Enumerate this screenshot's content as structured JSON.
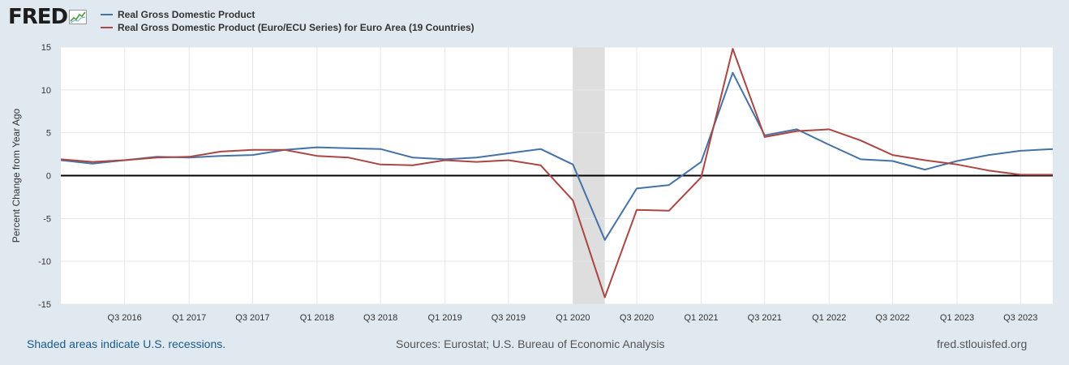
{
  "logo": {
    "text": "FRED",
    "icon": "line-graph-icon"
  },
  "colors": {
    "series1": "#4572a7",
    "series2": "#aa4643",
    "recession": "#dedede",
    "background": "#e1e9f0",
    "plot": "#ffffff",
    "grid": "#e6e6e6",
    "zero_line": "#000000"
  },
  "footer": {
    "note": "Shaded areas indicate U.S. recessions.",
    "sources": "Sources: Eurostat; U.S. Bureau of Economic Analysis",
    "url": "fred.stlouisfed.org"
  },
  "chart_data": {
    "type": "line",
    "title": "",
    "xlabel": "",
    "ylabel": "Percent Change from Year Ago",
    "ylim": [
      -15,
      15
    ],
    "yticks": [
      15,
      10,
      5,
      0,
      -5,
      -10,
      -15
    ],
    "grid": true,
    "legend_position": "top-left",
    "x": [
      "2016-01-01",
      "2016-04-01",
      "2016-07-01",
      "2016-10-01",
      "2017-01-01",
      "2017-04-01",
      "2017-07-01",
      "2017-10-01",
      "2018-01-01",
      "2018-04-01",
      "2018-07-01",
      "2018-10-01",
      "2019-01-01",
      "2019-04-01",
      "2019-07-01",
      "2019-10-01",
      "2020-01-01",
      "2020-04-01",
      "2020-07-01",
      "2020-10-01",
      "2021-01-01",
      "2021-04-01",
      "2021-07-01",
      "2021-10-01",
      "2022-01-01",
      "2022-04-01",
      "2022-07-01",
      "2022-10-01",
      "2023-01-01",
      "2023-04-01",
      "2023-07-01",
      "2023-10-01"
    ],
    "xtick_labels": [
      "Q3 2016",
      "Q1 2017",
      "Q3 2017",
      "Q1 2018",
      "Q3 2018",
      "Q1 2019",
      "Q3 2019",
      "Q1 2020",
      "Q3 2020",
      "Q1 2021",
      "Q3 2021",
      "Q1 2022",
      "Q3 2022",
      "Q1 2023",
      "Q3 2023"
    ],
    "recessions": [
      [
        "2020-01-01",
        "2020-04-01"
      ]
    ],
    "series": [
      {
        "name": "Real Gross Domestic Product",
        "color": "#4572a7",
        "values": [
          1.8,
          1.4,
          1.8,
          2.2,
          2.1,
          2.3,
          2.4,
          3.0,
          3.3,
          3.2,
          3.1,
          2.1,
          1.9,
          2.1,
          2.6,
          3.1,
          1.3,
          -7.5,
          -1.5,
          -1.1,
          1.6,
          12.0,
          4.7,
          5.4,
          3.6,
          1.9,
          1.7,
          0.7,
          1.7,
          2.4,
          2.9,
          3.1
        ]
      },
      {
        "name": "Real Gross Domestic Product (Euro/ECU Series) for Euro Area (19 Countries)",
        "color": "#aa4643",
        "values": [
          1.9,
          1.6,
          1.8,
          2.1,
          2.2,
          2.8,
          3.0,
          3.0,
          2.3,
          2.1,
          1.3,
          1.2,
          1.8,
          1.6,
          1.8,
          1.2,
          -2.9,
          -14.2,
          -4.0,
          -4.1,
          -0.2,
          14.8,
          4.5,
          5.2,
          5.4,
          4.1,
          2.4,
          1.8,
          1.3,
          0.6,
          0.1,
          0.1
        ]
      }
    ]
  }
}
